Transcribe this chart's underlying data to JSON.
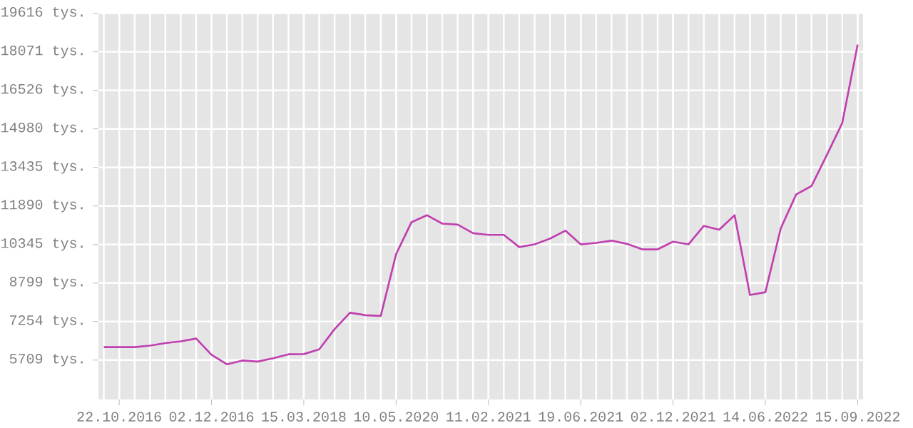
{
  "chart_data": {
    "type": "line",
    "categories": [
      null,
      "22.10.2016",
      null,
      null,
      null,
      null,
      null,
      "02.12.2016",
      null,
      null,
      null,
      null,
      null,
      "15.03.2018",
      null,
      null,
      null,
      null,
      null,
      "10.05.2020",
      null,
      null,
      null,
      null,
      null,
      "11.02.2021",
      null,
      null,
      null,
      null,
      null,
      "19.06.2021",
      null,
      null,
      null,
      null,
      null,
      "02.12.2021",
      null,
      null,
      null,
      null,
      null,
      "14.06.2022",
      null,
      null,
      null,
      null,
      null,
      "15.09.2022"
    ],
    "series": [
      {
        "color": "#c040b0",
        "values": [
          6230,
          6230,
          6230,
          6290,
          6390,
          6460,
          6570,
          5920,
          5540,
          5690,
          5650,
          5780,
          5940,
          5950,
          6140,
          6950,
          7610,
          7510,
          7480,
          9960,
          11240,
          11520,
          11180,
          11140,
          10800,
          10730,
          10730,
          10240,
          10350,
          10580,
          10900,
          10350,
          10410,
          10500,
          10370,
          10150,
          10150,
          10460,
          10350,
          11090,
          10940,
          11520,
          8320,
          8430,
          10990,
          12350,
          12690,
          13940,
          15220,
          18360
        ]
      }
    ],
    "ylim": [
      4130,
      19616
    ],
    "yticks": [
      {
        "value": 5709,
        "label": "5709 tys."
      },
      {
        "value": 7254,
        "label": "7254 tys."
      },
      {
        "value": 8799,
        "label": "8799 tys."
      },
      {
        "value": 10345,
        "label": "10345 tys."
      },
      {
        "value": 11890,
        "label": "11890 tys."
      },
      {
        "value": 13435,
        "label": "13435 tys."
      },
      {
        "value": 14980,
        "label": "14980 tys."
      },
      {
        "value": 16526,
        "label": "16526 tys."
      },
      {
        "value": 18071,
        "label": "18071 tys."
      },
      {
        "value": 19616,
        "label": "19616 tys."
      }
    ],
    "grid": true,
    "marker": "none",
    "line_style": "solid"
  }
}
